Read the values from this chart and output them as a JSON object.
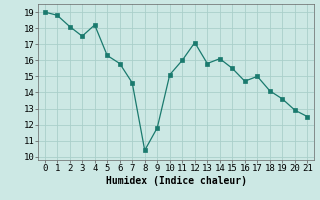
{
  "x": [
    0,
    1,
    2,
    3,
    4,
    5,
    6,
    7,
    8,
    9,
    10,
    11,
    12,
    13,
    14,
    15,
    16,
    17,
    18,
    19,
    20,
    21
  ],
  "y": [
    19.0,
    18.8,
    18.1,
    17.5,
    18.2,
    16.3,
    15.8,
    14.6,
    10.4,
    11.8,
    15.1,
    16.0,
    17.1,
    15.8,
    16.1,
    15.5,
    14.7,
    15.0,
    14.1,
    13.6,
    12.9,
    12.5
  ],
  "line_color": "#1a7a6e",
  "marker_color": "#1a7a6e",
  "bg_color": "#cce8e4",
  "grid_color": "#aacfca",
  "xlabel": "Humidex (Indice chaleur)",
  "xlabel_fontsize": 7,
  "tick_fontsize": 6.5,
  "ylim": [
    9.8,
    19.5
  ],
  "xlim": [
    -0.5,
    21.5
  ],
  "yticks": [
    10,
    11,
    12,
    13,
    14,
    15,
    16,
    17,
    18,
    19
  ],
  "xticks": [
    0,
    1,
    2,
    3,
    4,
    5,
    6,
    7,
    8,
    9,
    10,
    11,
    12,
    13,
    14,
    15,
    16,
    17,
    18,
    19,
    20,
    21
  ]
}
